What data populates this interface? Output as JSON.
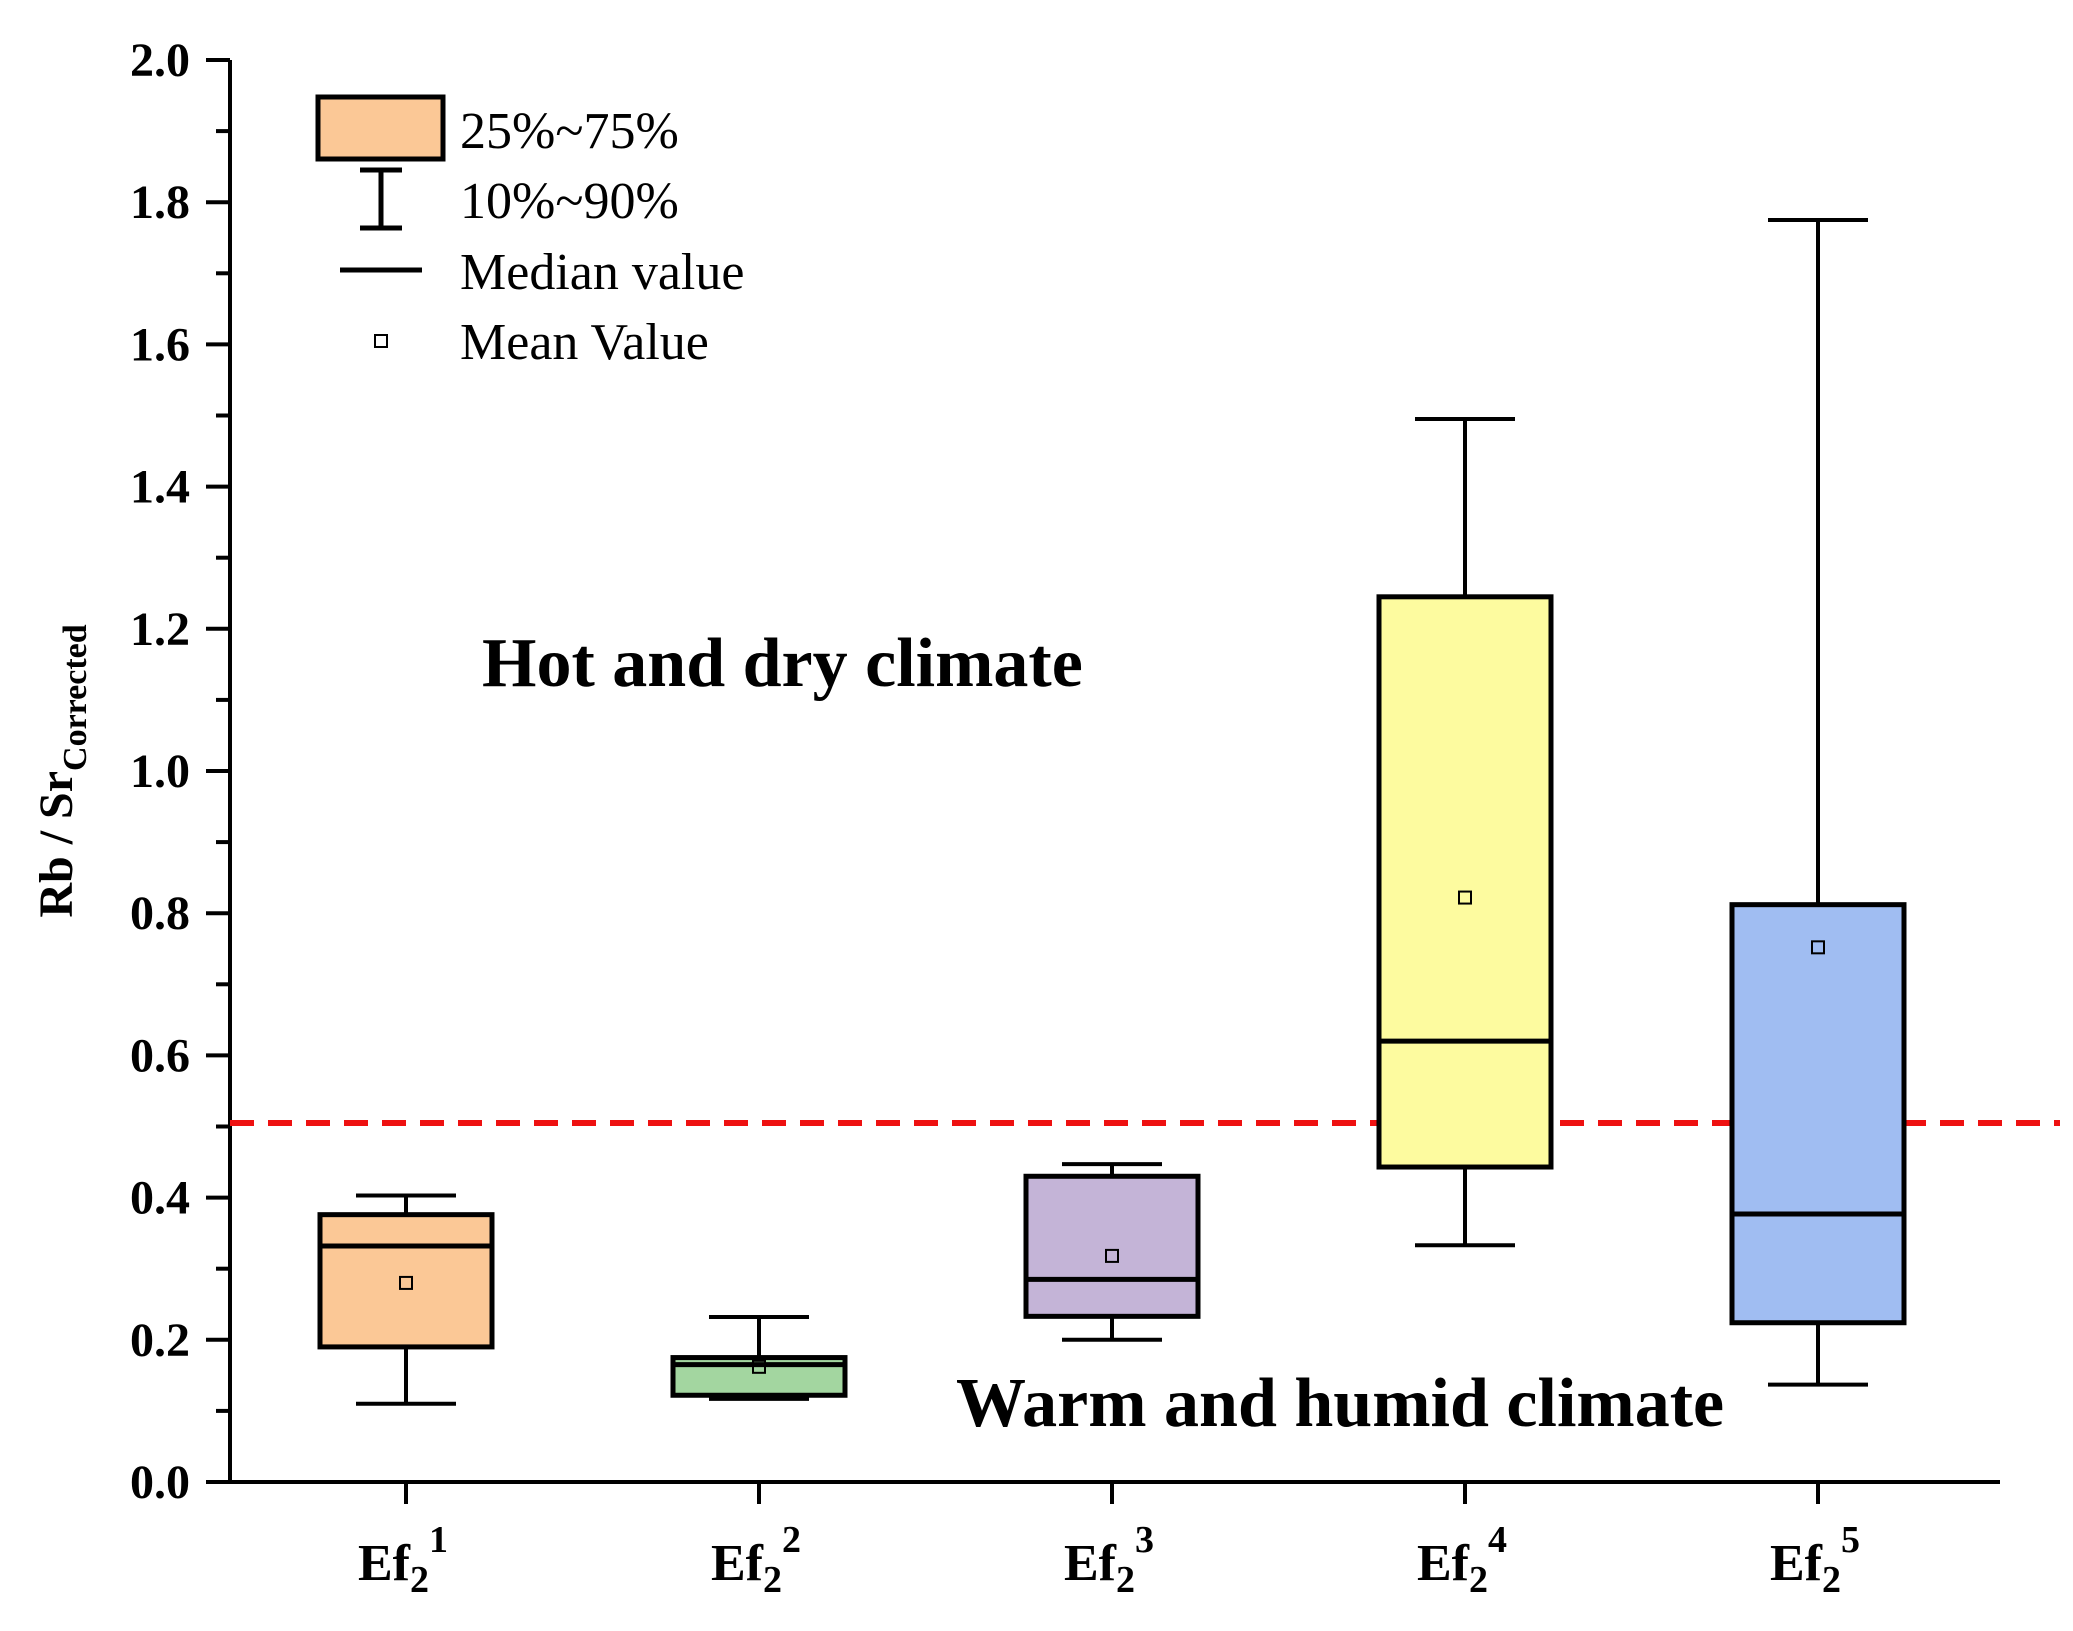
{
  "chart_data": {
    "type": "boxplot",
    "ylabel": "Rb / Sr",
    "ylabel_subscript": "Corrected",
    "ylim": [
      0,
      2.0
    ],
    "yticks": [
      "0.0",
      "0.2",
      "0.4",
      "0.6",
      "0.8",
      "1.0",
      "1.2",
      "1.4",
      "1.6",
      "1.8",
      "2.0"
    ],
    "threshold": 0.505,
    "threshold_color": "#ee1111",
    "categories": [
      {
        "base": "Ef",
        "sub": "2",
        "sup": "1",
        "color": "#fbc896",
        "p10": 0.11,
        "q1": 0.19,
        "median": 0.332,
        "q3": 0.376,
        "p90": 0.403,
        "mean": 0.28
      },
      {
        "base": "Ef",
        "sub": "2",
        "sup": "2",
        "color": "#a3d6a0",
        "p10": 0.117,
        "q1": 0.122,
        "median": 0.165,
        "q3": 0.175,
        "p90": 0.232,
        "mean": 0.162
      },
      {
        "base": "Ef",
        "sub": "2",
        "sup": "3",
        "color": "#c4b4d7",
        "p10": 0.2,
        "q1": 0.233,
        "median": 0.285,
        "q3": 0.43,
        "p90": 0.447,
        "mean": 0.318
      },
      {
        "base": "Ef",
        "sub": "2",
        "sup": "4",
        "color": "#fdfb9f",
        "p10": 0.333,
        "q1": 0.443,
        "median": 0.62,
        "q3": 1.245,
        "p90": 1.495,
        "mean": 0.822
      },
      {
        "base": "Ef",
        "sub": "2",
        "sup": "5",
        "color": "#a0bdf2",
        "p10": 0.137,
        "q1": 0.224,
        "median": 0.377,
        "q3": 0.812,
        "p90": 1.775,
        "mean": 0.752
      }
    ],
    "legend": {
      "box": "25%~75%",
      "whisker": "10%~90%",
      "median": "Median value",
      "mean": "Mean Value",
      "box_color": "#fbc896"
    },
    "annotations": {
      "upper": "Hot and dry climate",
      "lower": "Warm and humid climate"
    }
  }
}
